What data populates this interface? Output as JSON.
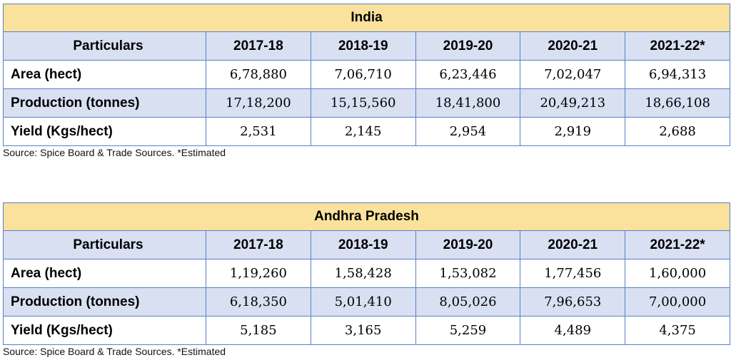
{
  "tables": [
    {
      "title": "India",
      "header": [
        "Particulars",
        "2017-18",
        "2018-19",
        "2019-20",
        "2020-21",
        "2021-22*"
      ],
      "rows": [
        {
          "label": "Area (hect)",
          "values": [
            "6,78,880",
            "7,06,710",
            "6,23,446",
            "7,02,047",
            "6,94,313"
          ]
        },
        {
          "label": "Production (tonnes)",
          "values": [
            "17,18,200",
            "15,15,560",
            "18,41,800",
            "20,49,213",
            "18,66,108"
          ]
        },
        {
          "label": "Yield (Kgs/hect)",
          "values": [
            "2,531",
            "2,145",
            "2,954",
            "2,919",
            "2,688"
          ]
        }
      ],
      "source": "Source: Spice Board & Trade Sources. *Estimated"
    },
    {
      "title": "Andhra Pradesh",
      "header": [
        "Particulars",
        "2017-18",
        "2018-19",
        "2019-20",
        "2020-21",
        "2021-22*"
      ],
      "rows": [
        {
          "label": "Area (hect)",
          "values": [
            "1,19,260",
            "1,58,428",
            "1,53,082",
            "1,77,456",
            "1,60,000"
          ]
        },
        {
          "label": "Production (tonnes)",
          "values": [
            "6,18,350",
            "5,01,410",
            "8,05,026",
            "7,96,653",
            "7,00,000"
          ]
        },
        {
          "label": "Yield (Kgs/hect)",
          "values": [
            "5,185",
            "3,165",
            "5,259",
            "4,489",
            "4,375"
          ]
        }
      ],
      "source": "Source: Spice Board & Trade Sources. *Estimated"
    }
  ],
  "colors": {
    "title_fill": "#fbe29c",
    "header_fill": "#d8e0f2",
    "border": "#5b7fc7"
  }
}
